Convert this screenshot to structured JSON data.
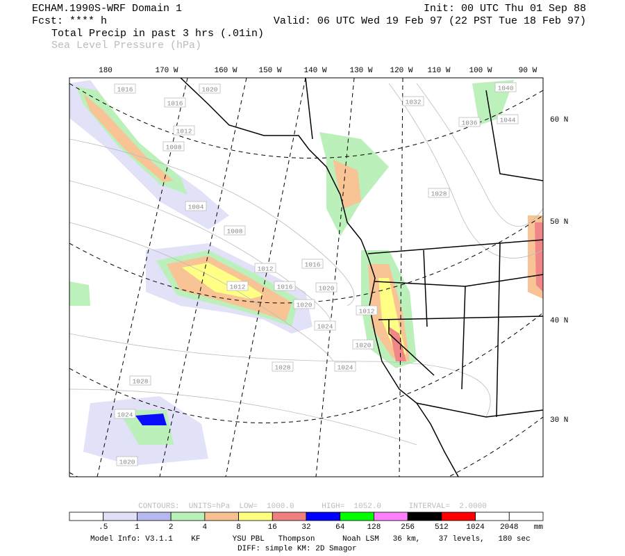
{
  "header": {
    "title": "ECHAM.1990S-WRF Domain 1",
    "init": "Init: 00 UTC Thu 01 Sep 88",
    "fcst": "Fcst: **** h",
    "valid": "Valid: 06 UTC Wed 19 Feb 97 (22 PST Tue 18 Feb 97)",
    "field1": "Total Precip in past 3 hrs (.01in)",
    "field2": "Sea Level Pressure (hPa)"
  },
  "lon_labels": [
    "180",
    "170 W",
    "160 W",
    "150 W",
    "140 W",
    "130 W",
    "120 W",
    "110 W",
    "100 W",
    "90 W"
  ],
  "lat_labels": [
    "60 N",
    "50 N",
    "40 N",
    "30 N"
  ],
  "contour_labels": [
    "1016",
    "1020",
    "1016",
    "1012",
    "1008",
    "1004",
    "1008",
    "1012",
    "1012",
    "1016",
    "1016",
    "1020",
    "1020",
    "1024",
    "1012",
    "1020",
    "1024",
    "1028",
    "1028",
    "1024",
    "1020",
    "1032",
    "1036",
    "1044",
    "1040",
    "1028"
  ],
  "contour_info": "CONTOURS:  UNITS=hPa  LOW=  1000.0      HIGH=  1052.0      INTERVAL=  2.0000",
  "colorbar": {
    "colors": [
      "#ffffff",
      "#e0e0f8",
      "#b8b8f0",
      "#b8f0b8",
      "#f8c090",
      "#ffff80",
      "#f08080",
      "#0000ff",
      "#00ff00",
      "#ff80ff",
      "#000000",
      "#ff0000",
      "#ffffff",
      "#ffffff"
    ],
    "labels": [
      ".5",
      "1",
      "2",
      "4",
      "8",
      "16",
      "32",
      "64",
      "128",
      "256",
      "512",
      "1024",
      "2048"
    ],
    "units": "mm"
  },
  "footer": {
    "model_info": "Model Info: V3.1.1    KF       YSU PBL   Thompson      Noah LSM   36 km,    37 levels,   180 sec",
    "diff": "DIFF: simple KM: 2D Smagor"
  }
}
